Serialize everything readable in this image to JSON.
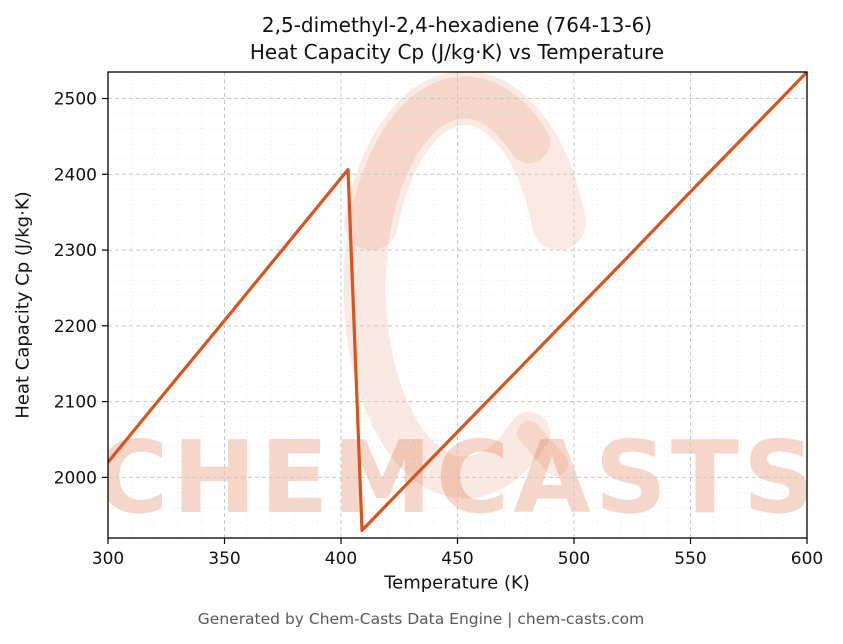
{
  "page": {
    "background": "#ffffff"
  },
  "chart": {
    "title_line1": "2,5-dimethyl-2,4-hexadiene (764-13-6)",
    "title_line2": "Heat Capacity Cp (J/kg·K) vs Temperature",
    "xlabel": "Temperature (K)",
    "ylabel": "Heat Capacity Cp (J/kg·K)",
    "footer": "Generated by Chem-Casts Data Engine | chem-casts.com",
    "watermark_text": "CHEMCASTS",
    "line_color": "#d9531c",
    "watermark_color": "#d9531c",
    "grid_major_color": "#c8c8c8",
    "grid_minor_color": "#e7e7e7",
    "spine_color": "#000000",
    "tick_label_color": "#111111",
    "footer_color": "#595959"
  },
  "chart_data": {
    "type": "line",
    "title": "2,5-dimethyl-2,4-hexadiene (764-13-6) — Heat Capacity Cp (J/kg·K) vs Temperature",
    "xlabel": "Temperature (K)",
    "ylabel": "Heat Capacity Cp (J/kg·K)",
    "xlim": [
      300,
      600
    ],
    "ylim": [
      1920,
      2535
    ],
    "xticks": [
      300,
      350,
      400,
      450,
      500,
      550,
      600
    ],
    "yticks": [
      2000,
      2100,
      2200,
      2300,
      2400,
      2500
    ],
    "grid": {
      "major": true,
      "minor": true,
      "minor_x_step": 10,
      "minor_y_step": 20
    },
    "legend": "none",
    "series": [
      {
        "name": "Heat Capacity Cp",
        "points": [
          [
            300,
            2020
          ],
          [
            325,
            2114
          ],
          [
            350,
            2207
          ],
          [
            375,
            2301
          ],
          [
            400,
            2395
          ],
          [
            403,
            2406
          ],
          [
            406,
            2170
          ],
          [
            409,
            1930
          ],
          [
            425,
            1981
          ],
          [
            450,
            2060
          ],
          [
            475,
            2139
          ],
          [
            500,
            2218
          ],
          [
            525,
            2297
          ],
          [
            550,
            2377
          ],
          [
            575,
            2456
          ],
          [
            600,
            2535
          ]
        ]
      }
    ]
  }
}
